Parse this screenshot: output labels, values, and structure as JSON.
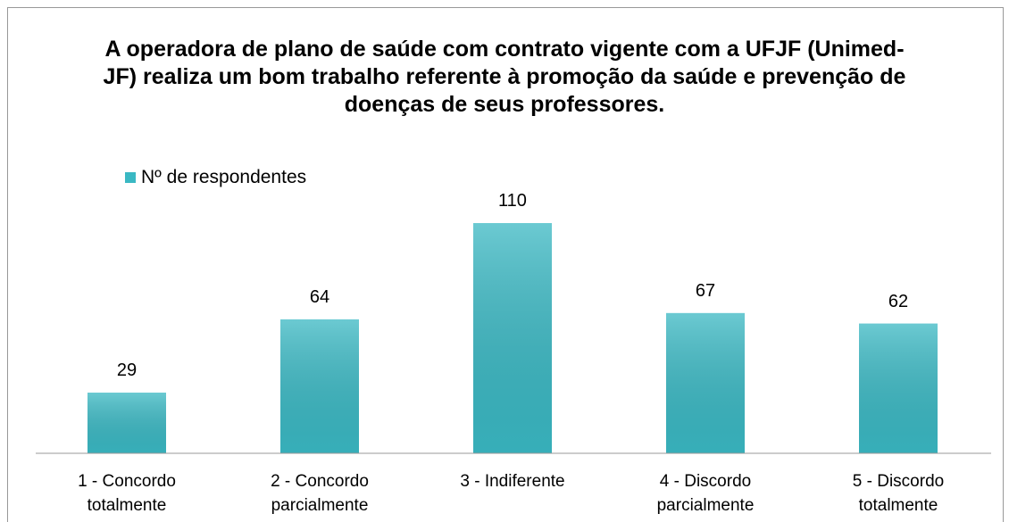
{
  "chart_data": {
    "type": "bar",
    "title": "A operadora de plano de saúde com contrato vigente com a UFJF (Unimed-JF) realiza um bom trabalho referente à promoção da saúde e prevenção de doenças de seus professores.",
    "categories": [
      "1 - Concordo totalmente",
      "2 - Concordo parcialmente",
      "3 - Indiferente",
      "4 - Discordo parcialmente",
      "5 - Discordo totalmente"
    ],
    "series": [
      {
        "name": "Nº de respondentes",
        "color": "#3ab8c3",
        "values": [
          29,
          64,
          110,
          67,
          62
        ]
      }
    ]
  }
}
